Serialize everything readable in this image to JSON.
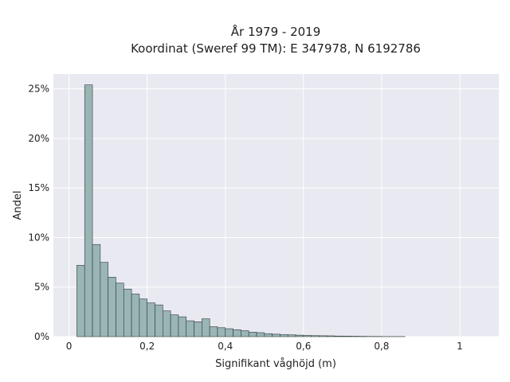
{
  "chart_data": {
    "type": "bar",
    "title_lines": [
      "År 1979 - 2019",
      "Koordinat (Sweref 99 TM): E 347978, N 6192786"
    ],
    "xlabel": "Signifikant våghöjd (m)",
    "ylabel": "Andel",
    "xlim": [
      -0.04,
      1.1
    ],
    "ylim": [
      0,
      0.265
    ],
    "x_ticks": [
      {
        "value": 0,
        "label": "0"
      },
      {
        "value": 0.2,
        "label": "0,2"
      },
      {
        "value": 0.4,
        "label": "0,4"
      },
      {
        "value": 0.6,
        "label": "0,6"
      },
      {
        "value": 0.8,
        "label": "0,8"
      },
      {
        "value": 1.0,
        "label": "1"
      }
    ],
    "y_ticks": [
      {
        "value": 0,
        "label": "0%"
      },
      {
        "value": 0.05,
        "label": "5%"
      },
      {
        "value": 0.1,
        "label": "10%"
      },
      {
        "value": 0.15,
        "label": "15%"
      },
      {
        "value": 0.2,
        "label": "20%"
      },
      {
        "value": 0.25,
        "label": "25%"
      }
    ],
    "grid": true,
    "bin_width": 0.02,
    "bin_start": 0.02,
    "values": [
      0.072,
      0.254,
      0.093,
      0.075,
      0.06,
      0.054,
      0.048,
      0.043,
      0.038,
      0.034,
      0.032,
      0.026,
      0.022,
      0.02,
      0.016,
      0.015,
      0.018,
      0.01,
      0.009,
      0.008,
      0.007,
      0.006,
      0.0045,
      0.004,
      0.003,
      0.0025,
      0.002,
      0.0018,
      0.0015,
      0.0012,
      0.001,
      0.0009,
      0.0008,
      0.0006,
      0.0005,
      0.0004,
      0.0003,
      0.0002,
      0.0002,
      0.0001,
      0.0001,
      0.0001
    ],
    "bar_color": "#9ab5b5",
    "bar_edge_color": "#2f3a3a",
    "plot_bg": "#e9e9f1",
    "grid_color": "#ffffff"
  }
}
